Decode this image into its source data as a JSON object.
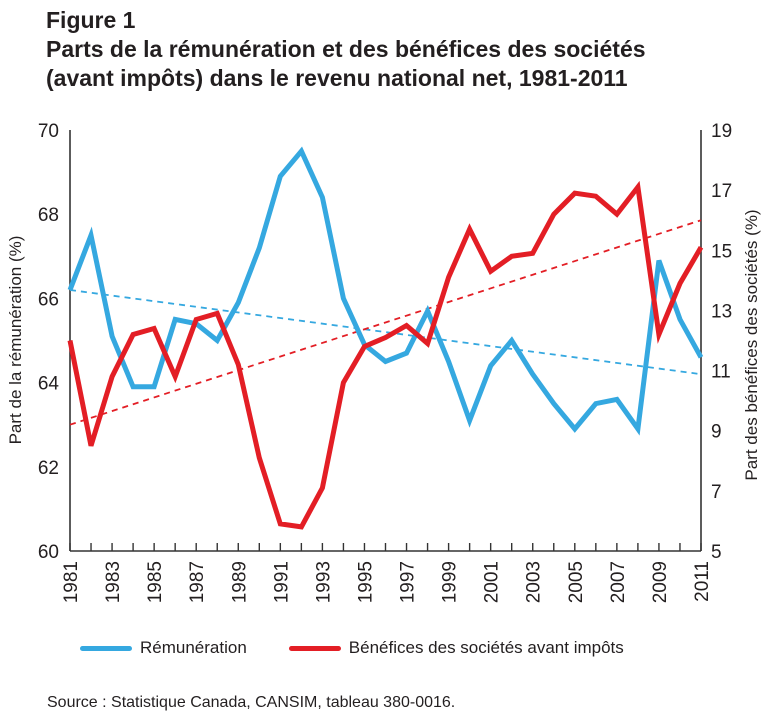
{
  "figure": {
    "label": "Figure 1",
    "title_line1": "Parts de la rémunération et des bénéfices des sociétés",
    "title_line2": "(avant impôts) dans le revenu national net, 1981-2011"
  },
  "source": "Source : Statistique Canada, CANSIM, tableau 380-0016.",
  "colors": {
    "remuneration": "#35a8e0",
    "benefices": "#e31e25",
    "axis": "#333333"
  },
  "chart_data": {
    "type": "line",
    "title": "Parts de la rémunération et des bénéfices des sociétés (avant impôts) dans le revenu national net, 1981-2011",
    "xlabel": "",
    "ylabel_left": "Part de la rémunération (%)",
    "ylabel_right": "Part des bénéfices des sociétés (%)",
    "ylim_left": [
      60,
      70
    ],
    "ylim_right": [
      5,
      19
    ],
    "yticks_left": [
      "60",
      "62",
      "64",
      "66",
      "68",
      "70"
    ],
    "yticks_right": [
      "5",
      "7",
      "9",
      "11",
      "13",
      "15",
      "17",
      "19"
    ],
    "x": [
      1981,
      1982,
      1983,
      1984,
      1985,
      1986,
      1987,
      1988,
      1989,
      1990,
      1991,
      1992,
      1993,
      1994,
      1995,
      1996,
      1997,
      1998,
      1999,
      2000,
      2001,
      2002,
      2003,
      2004,
      2005,
      2006,
      2007,
      2008,
      2009,
      2010,
      2011
    ],
    "xticks": [
      "1981",
      "1983",
      "1985",
      "1987",
      "1989",
      "1991",
      "1993",
      "1995",
      "1997",
      "1999",
      "2001",
      "2003",
      "2005",
      "2007",
      "2009",
      "2011"
    ],
    "grid": false,
    "legend_position": "bottom",
    "series": [
      {
        "name": "Rémunération",
        "axis": "left",
        "color": "#35a8e0",
        "values": [
          66.2,
          67.5,
          65.1,
          63.9,
          63.9,
          65.5,
          65.4,
          65.0,
          65.9,
          67.2,
          68.9,
          69.5,
          68.4,
          66.0,
          64.9,
          64.5,
          64.7,
          65.7,
          64.5,
          63.1,
          64.4,
          65.0,
          64.2,
          63.5,
          62.9,
          63.5,
          63.6,
          62.9,
          66.9,
          65.5,
          64.6
        ]
      },
      {
        "name": "Bénéfices des sociétés avant impôts",
        "axis": "right",
        "color": "#e31e25",
        "values": [
          12.0,
          8.5,
          10.8,
          12.2,
          12.4,
          10.8,
          12.7,
          12.9,
          11.2,
          8.1,
          5.9,
          5.8,
          7.1,
          10.6,
          11.8,
          12.1,
          12.5,
          11.9,
          14.1,
          15.7,
          14.3,
          14.8,
          14.9,
          16.2,
          16.9,
          16.8,
          16.2,
          17.1,
          12.2,
          13.9,
          15.1
        ]
      }
    ],
    "trendlines": [
      {
        "series": "Rémunération",
        "axis": "left",
        "style": "dashed",
        "start": [
          1981,
          66.2
        ],
        "end": [
          2011,
          64.2
        ]
      },
      {
        "series": "Bénéfices des sociétés avant impôts",
        "axis": "right",
        "style": "dashed",
        "start": [
          1981,
          9.2
        ],
        "end": [
          2011,
          16.0
        ]
      }
    ]
  }
}
